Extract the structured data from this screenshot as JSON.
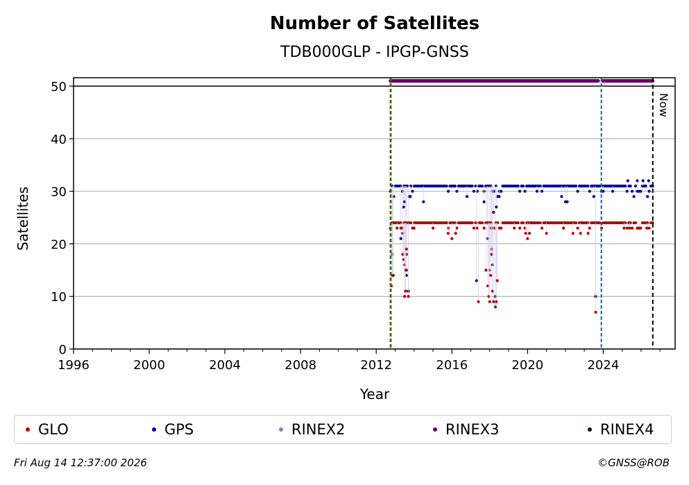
{
  "chart_data": {
    "type": "scatter",
    "title": "Number of Satellites",
    "subtitle": "TDB000GLP - IPGP-GNSS",
    "xlabel": "Year",
    "ylabel": "Satellites",
    "xlim": [
      1996,
      2027.8
    ],
    "ylim": [
      0,
      51.6
    ],
    "x_ticks": [
      1996,
      2000,
      2004,
      2008,
      2012,
      2016,
      2020,
      2024
    ],
    "x_tick_labels": [
      "1996",
      "2000",
      "2004",
      "2008",
      "2012",
      "2016",
      "2020",
      "2024"
    ],
    "y_ticks": [
      0,
      10,
      20,
      30,
      40,
      50
    ],
    "y_tick_labels": [
      "0",
      "10",
      "20",
      "30",
      "40",
      "50"
    ],
    "grid": "horizontal",
    "legend_position": "bottom",
    "now_label": "Now",
    "now_year": 2026.62,
    "vlines": [
      {
        "year": 2012.75,
        "color": "#cc0000"
      },
      {
        "year": 2012.78,
        "color": "#009900"
      },
      {
        "year": 2023.9,
        "color": "#1060c0"
      }
    ],
    "series": [
      {
        "name": "GLO",
        "color": "#b30000",
        "typical": 24,
        "start": 2012.75,
        "end": 2026.62,
        "outliers": [
          [
            2012.8,
            12
          ],
          [
            2012.85,
            14
          ],
          [
            2013.1,
            23
          ],
          [
            2013.3,
            23
          ],
          [
            2013.4,
            18
          ],
          [
            2013.45,
            17
          ],
          [
            2013.5,
            16
          ],
          [
            2013.5,
            10
          ],
          [
            2013.55,
            11
          ],
          [
            2013.6,
            15
          ],
          [
            2013.6,
            19
          ],
          [
            2013.7,
            10
          ],
          [
            2014.0,
            23
          ],
          [
            2015.0,
            23
          ],
          [
            2015.8,
            22
          ],
          [
            2016.0,
            21
          ],
          [
            2016.2,
            22
          ],
          [
            2017.4,
            9
          ],
          [
            2017.8,
            15
          ],
          [
            2017.9,
            12
          ],
          [
            2017.95,
            10
          ],
          [
            2018.0,
            9
          ],
          [
            2018.05,
            14
          ],
          [
            2018.1,
            18
          ],
          [
            2018.15,
            11
          ],
          [
            2018.2,
            9
          ],
          [
            2018.3,
            8
          ],
          [
            2018.35,
            9
          ],
          [
            2018.4,
            13
          ],
          [
            2019.3,
            23
          ],
          [
            2019.9,
            22
          ],
          [
            2020.0,
            21
          ],
          [
            2020.1,
            22
          ],
          [
            2021.0,
            22
          ],
          [
            2021.9,
            23
          ],
          [
            2022.4,
            22
          ],
          [
            2022.8,
            22
          ],
          [
            2023.2,
            22
          ],
          [
            2023.6,
            7
          ],
          [
            2025.1,
            23
          ],
          [
            2025.4,
            23
          ],
          [
            2025.9,
            23
          ],
          [
            2026.3,
            23
          ]
        ]
      },
      {
        "name": "GPS",
        "color": "#000099",
        "typical": 31,
        "start": 2012.75,
        "end": 2026.62,
        "outliers": [
          [
            2012.85,
            18
          ],
          [
            2012.9,
            14
          ],
          [
            2013.3,
            21
          ],
          [
            2013.4,
            22
          ],
          [
            2013.45,
            27
          ],
          [
            2013.5,
            28
          ],
          [
            2013.55,
            15
          ],
          [
            2013.6,
            14
          ],
          [
            2013.6,
            18
          ],
          [
            2013.7,
            11
          ],
          [
            2013.8,
            29
          ],
          [
            2014.5,
            28
          ],
          [
            2016.8,
            29
          ],
          [
            2017.3,
            13
          ],
          [
            2017.7,
            28
          ],
          [
            2017.85,
            24
          ],
          [
            2017.9,
            21
          ],
          [
            2018.0,
            15
          ],
          [
            2018.05,
            23
          ],
          [
            2018.1,
            19
          ],
          [
            2018.15,
            16
          ],
          [
            2018.2,
            26
          ],
          [
            2018.3,
            10
          ],
          [
            2018.35,
            27
          ],
          [
            2018.5,
            29
          ],
          [
            2020.5,
            30
          ],
          [
            2021.8,
            29
          ],
          [
            2022.0,
            28
          ],
          [
            2022.1,
            28
          ],
          [
            2023.5,
            29
          ],
          [
            2023.6,
            10
          ],
          [
            2024.0,
            30
          ],
          [
            2024.5,
            30
          ],
          [
            2025.3,
            32
          ],
          [
            2025.8,
            32
          ],
          [
            2026.1,
            32
          ],
          [
            2026.4,
            32
          ]
        ]
      },
      {
        "name": "RINEX2",
        "color": "#8080c0",
        "start": 2012.75,
        "end": 2026.62
      },
      {
        "name": "RINEX3",
        "color": "#660066",
        "level": 51,
        "start": 2012.75,
        "end": 2026.62,
        "gaps": [
          [
            2023.75,
            2023.95
          ]
        ]
      },
      {
        "name": "RINEX4",
        "color": "#1a0022",
        "start": null,
        "end": null
      }
    ]
  },
  "legend": {
    "items": [
      {
        "label": "GLO",
        "color": "#b30000"
      },
      {
        "label": "GPS",
        "color": "#000099"
      },
      {
        "label": "RINEX2",
        "color": "#8080c0"
      },
      {
        "label": "RINEX3",
        "color": "#660066"
      },
      {
        "label": "RINEX4",
        "color": "#1a0022"
      }
    ]
  },
  "footer": {
    "timestamp": "Fri Aug 14 12:37:00 2026",
    "copyright": "©GNSS@ROB"
  }
}
